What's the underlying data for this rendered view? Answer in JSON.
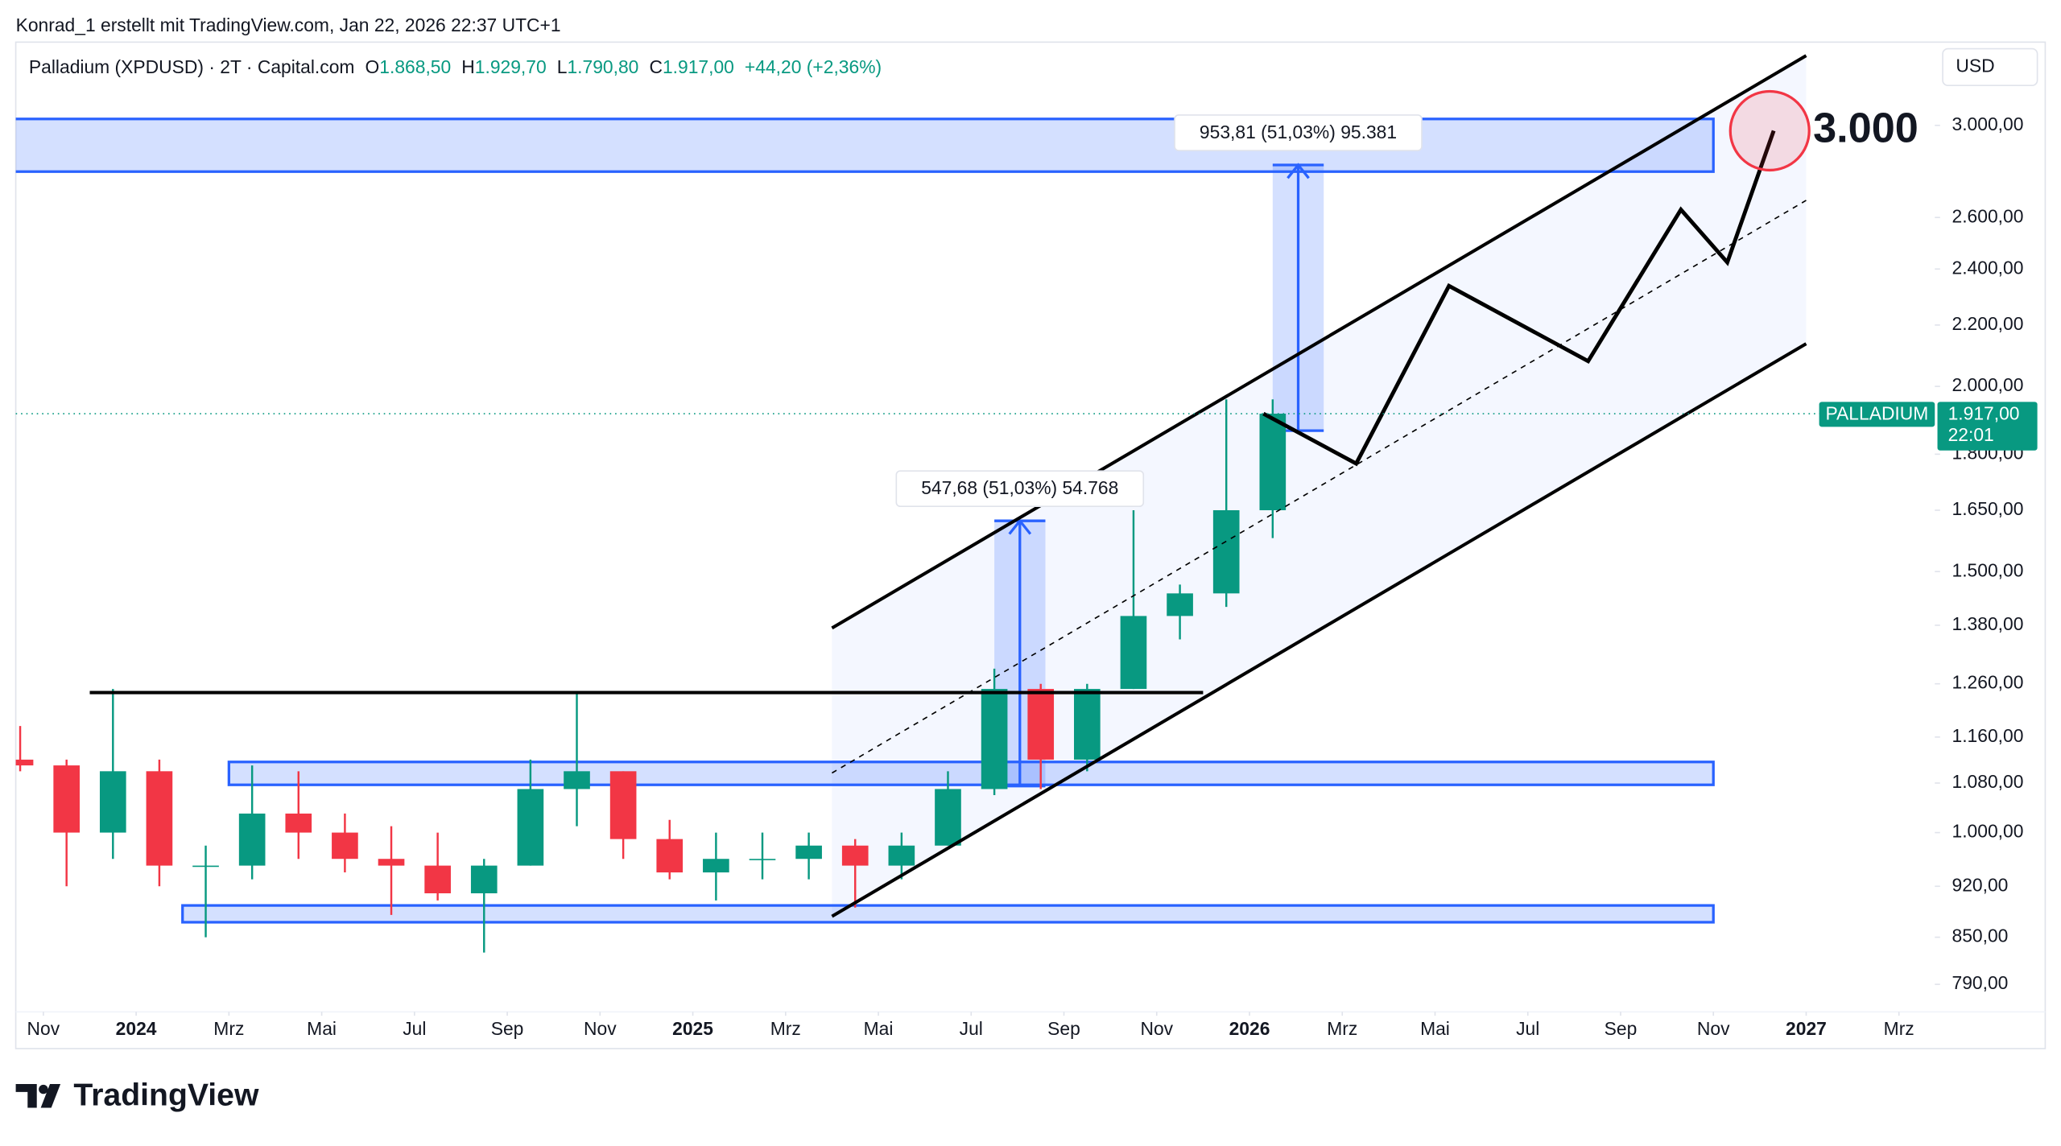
{
  "header": {
    "attribution": "Konrad_1 erstellt mit TradingView.com, Jan 22, 2026 22:37 UTC+1"
  },
  "footer": {
    "logo": "TradingView"
  },
  "chart_data": {
    "type": "candlestick",
    "title": "Palladium (XPDUSD) · 2T · Capital.com",
    "ohlc_legend": [
      {
        "key": "O",
        "value": 1868.5,
        "label": "1.868,50"
      },
      {
        "key": "H",
        "value": 1929.7,
        "label": "1.929,70"
      },
      {
        "key": "L",
        "value": 1790.8,
        "label": "1.790,80"
      },
      {
        "key": "C",
        "value": 1917,
        "label": "1.917,00"
      }
    ],
    "change": "+44,20 (+2,36%)",
    "currency": "USD",
    "up_color": "#089981",
    "down_color": "#f23645",
    "x": [
      "2023-10",
      "2023-11",
      "2023-12",
      "2024-01",
      "2024-02",
      "2024-03",
      "2024-04",
      "2024-05",
      "2024-06",
      "2024-07",
      "2024-08",
      "2024-09",
      "2024-10",
      "2024-11",
      "2024-12",
      "2025-01",
      "2025-02",
      "2025-03",
      "2025-04",
      "2025-05",
      "2025-06",
      "2025-07",
      "2025-08",
      "2025-09",
      "2025-10",
      "2025-11",
      "2025-12",
      "2026-01"
    ],
    "open": [
      1120,
      1110,
      1000,
      1100,
      950,
      950,
      1030,
      1000,
      960,
      950,
      910,
      950,
      1070,
      1100,
      990,
      940,
      960,
      960,
      980,
      950,
      980,
      1070,
      1250,
      1120,
      1250,
      1400,
      1450,
      1650
    ],
    "high": [
      1180,
      1120,
      1250,
      1120,
      980,
      1110,
      1100,
      1030,
      1010,
      1000,
      960,
      1120,
      1240,
      1100,
      1020,
      1000,
      1000,
      1000,
      990,
      1000,
      1100,
      1290,
      1260,
      1260,
      1650,
      1470,
      1960,
      1960
    ],
    "low": [
      1100,
      920,
      960,
      920,
      850,
      930,
      960,
      940,
      880,
      900,
      830,
      950,
      1010,
      960,
      930,
      900,
      930,
      930,
      890,
      930,
      980,
      1060,
      1070,
      1100,
      1250,
      1350,
      1420,
      1580
    ],
    "close": [
      1110,
      1000,
      1100,
      950,
      950,
      1030,
      1000,
      960,
      950,
      910,
      950,
      1070,
      1100,
      990,
      940,
      960,
      960,
      980,
      950,
      980,
      1070,
      1250,
      1120,
      1250,
      1400,
      1450,
      1650,
      1917
    ],
    "log_scale": true,
    "ylim": [
      757,
      3414
    ],
    "yticks": [
      {
        "value": 790,
        "label": "790,00"
      },
      {
        "value": 850,
        "label": "850,00"
      },
      {
        "value": 920,
        "label": "920,00"
      },
      {
        "value": 1000,
        "label": "1.000,00"
      },
      {
        "value": 1080,
        "label": "1.080,00"
      },
      {
        "value": 1160,
        "label": "1.160,00"
      },
      {
        "value": 1260,
        "label": "1.260,00"
      },
      {
        "value": 1380,
        "label": "1.380,00"
      },
      {
        "value": 1500,
        "label": "1.500,00"
      },
      {
        "value": 1650,
        "label": "1.650,00"
      },
      {
        "value": 1800,
        "label": "1.800,00"
      },
      {
        "value": 2000,
        "label": "2.000,00"
      },
      {
        "value": 2200,
        "label": "2.200,00"
      },
      {
        "value": 2400,
        "label": "2.400,00"
      },
      {
        "value": 2600,
        "label": "2.600,00"
      },
      {
        "value": 3000,
        "label": "3.000,00"
      }
    ],
    "xlim": [
      "2023-10",
      "2027-04"
    ],
    "xticks": [
      {
        "value": "2023-11",
        "label": "Nov"
      },
      {
        "value": "2024-01",
        "label": "2024"
      },
      {
        "value": "2024-03",
        "label": "Mrz"
      },
      {
        "value": "2024-05",
        "label": "Mai"
      },
      {
        "value": "2024-07",
        "label": "Jul"
      },
      {
        "value": "2024-09",
        "label": "Sep"
      },
      {
        "value": "2024-11",
        "label": "Nov"
      },
      {
        "value": "2025-01",
        "label": "2025"
      },
      {
        "value": "2025-03",
        "label": "Mrz"
      },
      {
        "value": "2025-05",
        "label": "Mai"
      },
      {
        "value": "2025-07",
        "label": "Jul"
      },
      {
        "value": "2025-09",
        "label": "Sep"
      },
      {
        "value": "2025-11",
        "label": "Nov"
      },
      {
        "value": "2026-01",
        "label": "2026"
      },
      {
        "value": "2026-03",
        "label": "Mrz"
      },
      {
        "value": "2026-05",
        "label": "Mai"
      },
      {
        "value": "2026-07",
        "label": "Jul"
      },
      {
        "value": "2026-09",
        "label": "Sep"
      },
      {
        "value": "2026-11",
        "label": "Nov"
      },
      {
        "value": "2027-01",
        "label": "2027"
      },
      {
        "value": "2027-03",
        "label": "Mrz"
      }
    ],
    "grid": false,
    "last_price": {
      "value": 1917,
      "label": "1.917,00",
      "symbol": "PALLADIUM",
      "time": "22:01",
      "color": "#089981"
    },
    "drawings": {
      "zones": [
        {
          "x": [
            "2023-10",
            "2026-11"
          ],
          "y": [
            2792,
            3030
          ]
        },
        {
          "x": [
            "2024-03",
            "2026-11"
          ],
          "y": [
            1077,
            1116
          ]
        },
        {
          "x": [
            "2024-02",
            "2026-11"
          ],
          "y": [
            870,
            893
          ]
        }
      ],
      "lines": [
        {
          "x": [
            "2023-12",
            "2025-12"
          ],
          "y": [
            1243,
            1243
          ],
          "style": "solid"
        },
        {
          "x": [
            "2025-04",
            "2027-01"
          ],
          "y": [
            1374,
            3343
          ],
          "style": "solid"
        },
        {
          "x": [
            "2025-04",
            "2027-01"
          ],
          "y": [
            878,
            2137
          ],
          "style": "solid"
        },
        {
          "x": [
            "2025-04",
            "2027-01"
          ],
          "y": [
            1097,
            2670
          ],
          "style": "dashed"
        }
      ],
      "measures": [
        {
          "x": [
            "2025-07",
            "2025-08"
          ],
          "y": [
            1075,
            1623
          ],
          "label": "547,68 (51,03%) 54.768"
        },
        {
          "x": [
            "2026-01",
            "2026-02"
          ],
          "y": [
            1867,
            2821
          ],
          "label": "953,81 (51,03%) 95.381"
        }
      ],
      "projection": {
        "x": [
          "2026-01",
          "2026-03",
          "2026-05",
          "2026-08",
          "2026-10",
          "2026-11",
          "2026-12"
        ],
        "y": [
          1917,
          1774,
          2338,
          2080,
          2632,
          2425,
          2975
        ]
      },
      "target": {
        "x": "2026-12",
        "y": 2975,
        "label": "3.000"
      }
    }
  }
}
